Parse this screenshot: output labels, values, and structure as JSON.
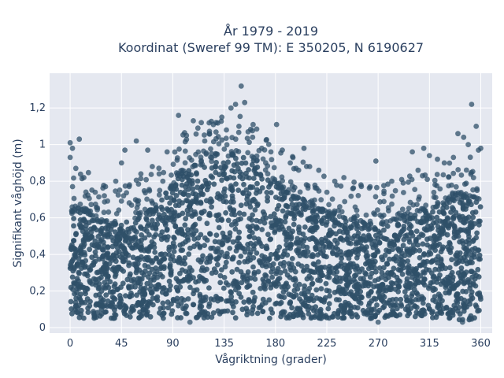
{
  "chart_data": {
    "type": "scatter",
    "title_line1": "År 1979 - 2019",
    "title_line2": "Koordinat (Sweref 99 TM): E 350205, N 6190627",
    "xlabel": "Vågriktning (grader)",
    "ylabel": "Signifikant våghöjd (m)",
    "xlim": [
      -18,
      370
    ],
    "ylim": [
      -0.03,
      1.39
    ],
    "xticks": [
      0,
      45,
      90,
      135,
      180,
      225,
      270,
      315,
      360
    ],
    "xtick_labels": [
      "0",
      "45",
      "90",
      "135",
      "180",
      "225",
      "270",
      "315",
      "360"
    ],
    "yticks": [
      0,
      0.2,
      0.4,
      0.6,
      0.8,
      1,
      1.2
    ],
    "ytick_labels": [
      "0",
      "0,2",
      "0,4",
      "0,6",
      "0,8",
      "1",
      "1,2"
    ],
    "marker_color": "#2f5069",
    "plot_bg": "#e5e8f0",
    "grid": true,
    "dense_band": {
      "x": [
        0,
        10,
        20,
        30,
        40,
        50,
        60,
        70,
        80,
        90,
        100,
        110,
        120,
        130,
        140,
        150,
        160,
        170,
        180,
        190,
        200,
        210,
        220,
        230,
        240,
        250,
        260,
        270,
        280,
        290,
        300,
        310,
        320,
        330,
        340,
        350,
        360
      ],
      "y_low": [
        0.07,
        0.05,
        0.05,
        0.05,
        0.05,
        0.05,
        0.05,
        0.05,
        0.05,
        0.05,
        0.05,
        0.05,
        0.05,
        0.05,
        0.05,
        0.05,
        0.05,
        0.05,
        0.05,
        0.05,
        0.05,
        0.05,
        0.05,
        0.05,
        0.05,
        0.05,
        0.05,
        0.05,
        0.05,
        0.05,
        0.05,
        0.05,
        0.05,
        0.05,
        0.04,
        0.04,
        0.06
      ],
      "y_high": [
        0.62,
        0.64,
        0.62,
        0.58,
        0.56,
        0.58,
        0.6,
        0.64,
        0.7,
        0.78,
        0.86,
        0.88,
        0.9,
        0.92,
        0.94,
        0.95,
        0.92,
        0.86,
        0.8,
        0.74,
        0.7,
        0.67,
        0.64,
        0.62,
        0.6,
        0.58,
        0.57,
        0.56,
        0.58,
        0.6,
        0.62,
        0.64,
        0.66,
        0.68,
        0.7,
        0.72,
        0.7
      ]
    },
    "scattered_points": [
      {
        "x": 0,
        "y": 1.01
      },
      {
        "x": 0,
        "y": 0.93
      },
      {
        "x": 2,
        "y": 0.98
      },
      {
        "x": 8,
        "y": 1.03
      },
      {
        "x": 5,
        "y": 0.87
      },
      {
        "x": 12,
        "y": 0.82
      },
      {
        "x": 22,
        "y": 0.74
      },
      {
        "x": 30,
        "y": 0.72
      },
      {
        "x": 40,
        "y": 0.8
      },
      {
        "x": 45,
        "y": 0.9
      },
      {
        "x": 48,
        "y": 0.97
      },
      {
        "x": 52,
        "y": 0.78
      },
      {
        "x": 58,
        "y": 1.02
      },
      {
        "x": 62,
        "y": 0.84
      },
      {
        "x": 68,
        "y": 0.97
      },
      {
        "x": 72,
        "y": 0.88
      },
      {
        "x": 78,
        "y": 0.84
      },
      {
        "x": 85,
        "y": 0.96
      },
      {
        "x": 95,
        "y": 1.16
      },
      {
        "x": 102,
        "y": 1.05
      },
      {
        "x": 108,
        "y": 1.13
      },
      {
        "x": 112,
        "y": 1.09
      },
      {
        "x": 115,
        "y": 1.12
      },
      {
        "x": 118,
        "y": 1.02
      },
      {
        "x": 122,
        "y": 1.06
      },
      {
        "x": 128,
        "y": 1.12
      },
      {
        "x": 133,
        "y": 1.15
      },
      {
        "x": 137,
        "y": 1.08
      },
      {
        "x": 141,
        "y": 1.2
      },
      {
        "x": 145,
        "y": 1.22
      },
      {
        "x": 148,
        "y": 1.1
      },
      {
        "x": 150,
        "y": 1.32
      },
      {
        "x": 153,
        "y": 1.23
      },
      {
        "x": 156,
        "y": 1.07
      },
      {
        "x": 160,
        "y": 1.04
      },
      {
        "x": 168,
        "y": 0.98
      },
      {
        "x": 176,
        "y": 0.96
      },
      {
        "x": 181,
        "y": 1.11
      },
      {
        "x": 186,
        "y": 0.97
      },
      {
        "x": 193,
        "y": 0.9
      },
      {
        "x": 198,
        "y": 0.87
      },
      {
        "x": 205,
        "y": 0.98
      },
      {
        "x": 210,
        "y": 0.88
      },
      {
        "x": 218,
        "y": 0.86
      },
      {
        "x": 232,
        "y": 0.8
      },
      {
        "x": 240,
        "y": 0.82
      },
      {
        "x": 255,
        "y": 0.78
      },
      {
        "x": 263,
        "y": 0.77
      },
      {
        "x": 268,
        "y": 0.91
      },
      {
        "x": 282,
        "y": 0.8
      },
      {
        "x": 292,
        "y": 0.79
      },
      {
        "x": 300,
        "y": 0.96
      },
      {
        "x": 305,
        "y": 0.86
      },
      {
        "x": 310,
        "y": 0.98
      },
      {
        "x": 315,
        "y": 0.94
      },
      {
        "x": 322,
        "y": 0.92
      },
      {
        "x": 328,
        "y": 0.9
      },
      {
        "x": 336,
        "y": 0.93
      },
      {
        "x": 340,
        "y": 1.06
      },
      {
        "x": 345,
        "y": 1.04
      },
      {
        "x": 349,
        "y": 1.0
      },
      {
        "x": 352,
        "y": 1.22
      },
      {
        "x": 356,
        "y": 1.1
      },
      {
        "x": 358,
        "y": 0.97
      },
      {
        "x": 360,
        "y": 0.98
      },
      {
        "x": 344,
        "y": 0.03
      },
      {
        "x": 270,
        "y": 0.03
      },
      {
        "x": 105,
        "y": 0.03
      }
    ]
  }
}
